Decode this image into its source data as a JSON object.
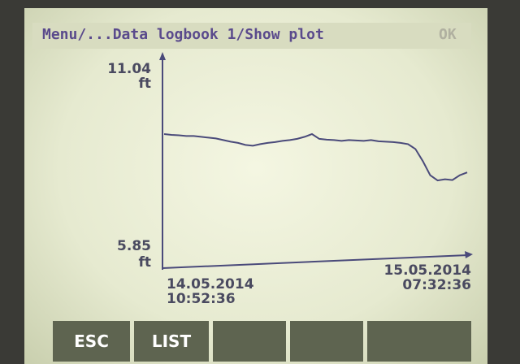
{
  "header": {
    "title": "Menu/...Data logbook 1/Show plot",
    "ok": "OK"
  },
  "chart_data": {
    "type": "line",
    "color": "#4a4a7a",
    "ylim": [
      5.85,
      11.04
    ],
    "yticks": [
      5.85,
      11.04
    ],
    "y_unit": "ft",
    "x_start": {
      "date": "14.05.2014",
      "time": "10:52:36"
    },
    "x_end": {
      "date": "15.05.2014",
      "time": "07:32:36"
    },
    "values": [
      9.17,
      9.15,
      9.14,
      9.12,
      9.12,
      9.1,
      9.08,
      9.06,
      9.02,
      8.98,
      8.95,
      8.9,
      8.88,
      8.92,
      8.95,
      8.97,
      9.0,
      9.02,
      9.05,
      9.1,
      9.17,
      9.05,
      9.03,
      9.02,
      9.0,
      9.02,
      9.01,
      9.0,
      9.02,
      8.99,
      8.98,
      8.97,
      8.95,
      8.92,
      8.8,
      8.5,
      8.15,
      8.02,
      8.05,
      8.03,
      8.15,
      8.22
    ]
  },
  "buttons": [
    "ESC",
    "LIST"
  ]
}
